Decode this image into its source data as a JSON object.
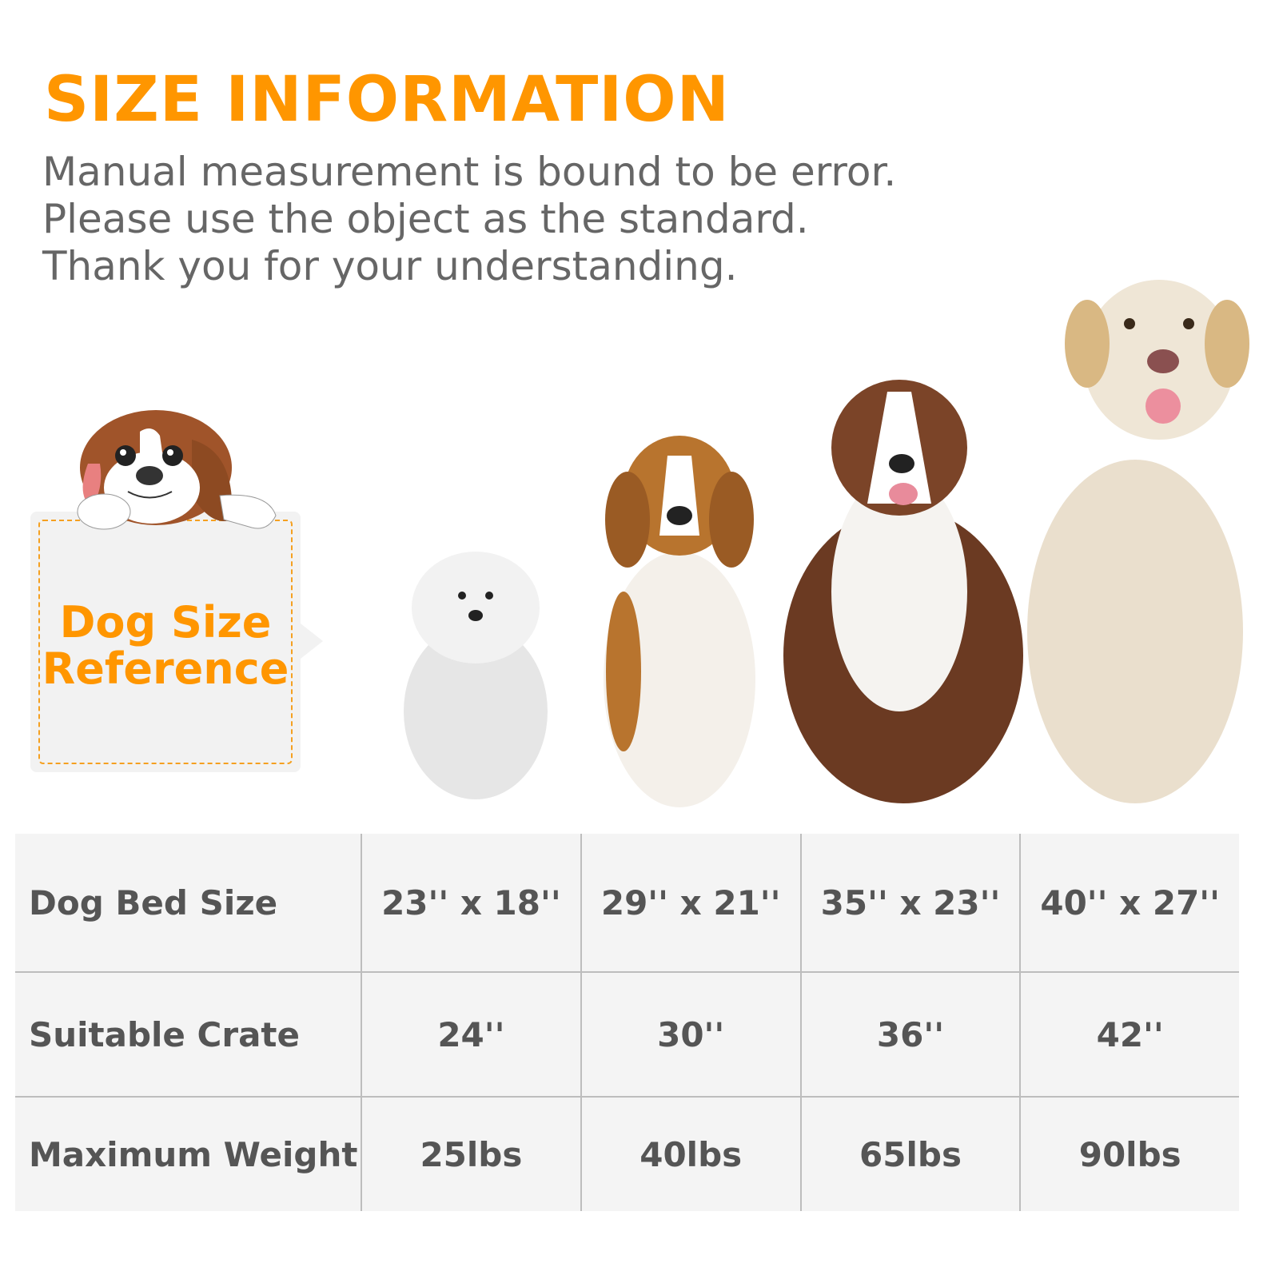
{
  "header": {
    "title": "SIZE INFORMATION",
    "notes": [
      "Manual measurement is bound to be error.",
      "Please use the object as the standard.",
      "Thank you for your understanding."
    ]
  },
  "reference_card": {
    "line1": "Dog Size",
    "line2": "Reference",
    "icon": "cartoon-beagle"
  },
  "colors": {
    "accent": "#ff9600",
    "text": "#555555",
    "table_bg": "#f4f4f4"
  },
  "dogs": [
    "bichon-poodle",
    "beagle",
    "border-collie",
    "labrador"
  ],
  "table": {
    "rows": [
      {
        "label": "Dog Bed Size",
        "values": [
          "23'' x 18''",
          "29'' x 21''",
          "35'' x 23''",
          "40'' x 27''"
        ]
      },
      {
        "label": "Suitable Crate",
        "values": [
          "24''",
          "30''",
          "36''",
          "42''"
        ]
      },
      {
        "label": "Maximum Weight",
        "values": [
          "25lbs",
          "40lbs",
          "65lbs",
          "90lbs"
        ]
      }
    ]
  }
}
